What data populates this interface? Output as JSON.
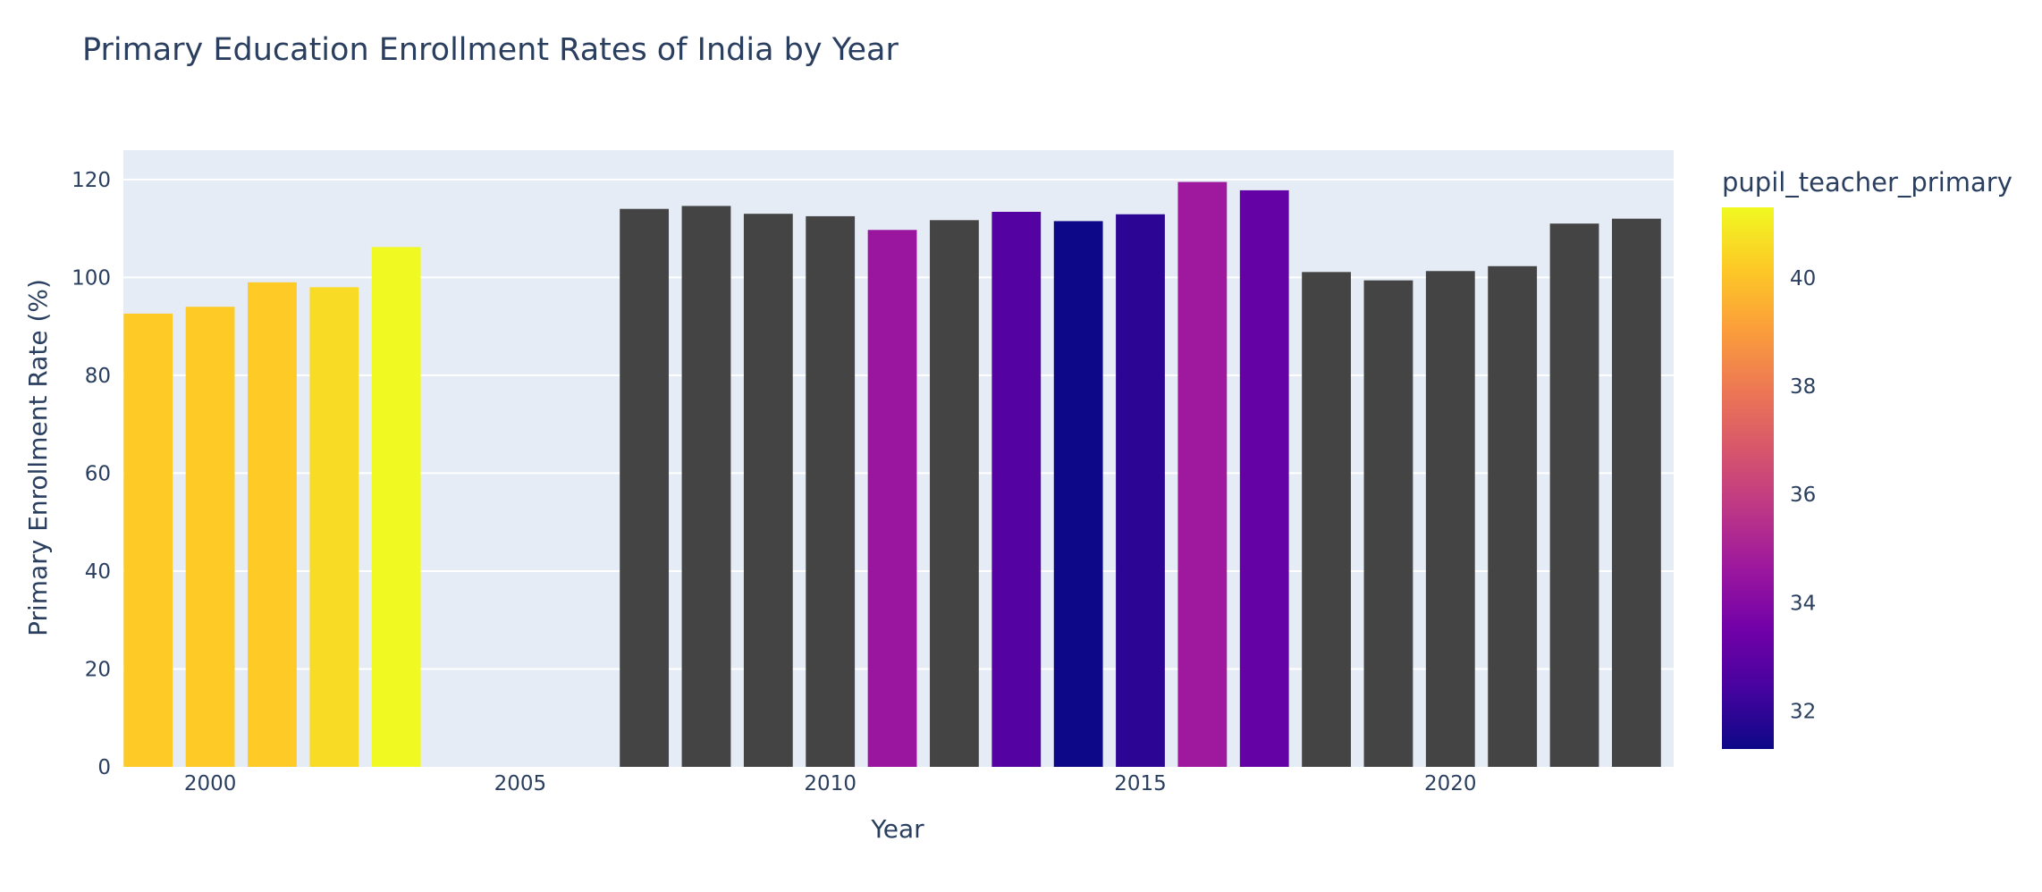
{
  "chart_data": {
    "type": "bar",
    "title": "Primary Education Enrollment Rates of India by Year",
    "xlabel": "Year",
    "ylabel": "Primary Enrollment Rate (%)",
    "xlim": [
      1998.6,
      2023.6
    ],
    "ylim": [
      0,
      126
    ],
    "x_ticks": [
      2000,
      2005,
      2010,
      2015,
      2020
    ],
    "y_ticks": [
      0,
      20,
      40,
      60,
      80,
      100,
      120
    ],
    "grid": true,
    "plot_background": "#e5ecf6",
    "missing_color": "#444444",
    "colorbar": {
      "title": "pupil_teacher_primary",
      "range": [
        31.3,
        41.3
      ],
      "ticks": [
        32,
        34,
        36,
        38,
        40
      ],
      "colorscale": [
        "#0d0887",
        "#46039f",
        "#7201a8",
        "#9c179e",
        "#bd3786",
        "#d8576b",
        "#ed7953",
        "#fb9f3a",
        "#fdca26",
        "#f0f921"
      ]
    },
    "bars": [
      {
        "x": 1999,
        "y": 92.6,
        "c": 40.2
      },
      {
        "x": 2000,
        "y": 94.0,
        "c": 40.2
      },
      {
        "x": 2001,
        "y": 99.0,
        "c": 40.2
      },
      {
        "x": 2002,
        "y": 98.0,
        "c": 40.6
      },
      {
        "x": 2003,
        "y": 106.2,
        "c": 41.3
      },
      {
        "x": 2007,
        "y": 114.0,
        "c": null
      },
      {
        "x": 2008,
        "y": 114.6,
        "c": null
      },
      {
        "x": 2009,
        "y": 113.0,
        "c": null
      },
      {
        "x": 2010,
        "y": 112.5,
        "c": null
      },
      {
        "x": 2011,
        "y": 109.7,
        "c": 34.6
      },
      {
        "x": 2012,
        "y": 111.7,
        "c": null
      },
      {
        "x": 2013,
        "y": 113.4,
        "c": 32.8
      },
      {
        "x": 2014,
        "y": 111.5,
        "c": 31.3
      },
      {
        "x": 2015,
        "y": 112.9,
        "c": 31.9
      },
      {
        "x": 2016,
        "y": 119.5,
        "c": 34.7
      },
      {
        "x": 2017,
        "y": 117.8,
        "c": 33.2
      },
      {
        "x": 2018,
        "y": 101.1,
        "c": null
      },
      {
        "x": 2019,
        "y": 99.4,
        "c": null
      },
      {
        "x": 2020,
        "y": 101.3,
        "c": null
      },
      {
        "x": 2021,
        "y": 102.3,
        "c": null
      },
      {
        "x": 2022,
        "y": 111.0,
        "c": null
      },
      {
        "x": 2023,
        "y": 112.0,
        "c": null
      }
    ]
  }
}
